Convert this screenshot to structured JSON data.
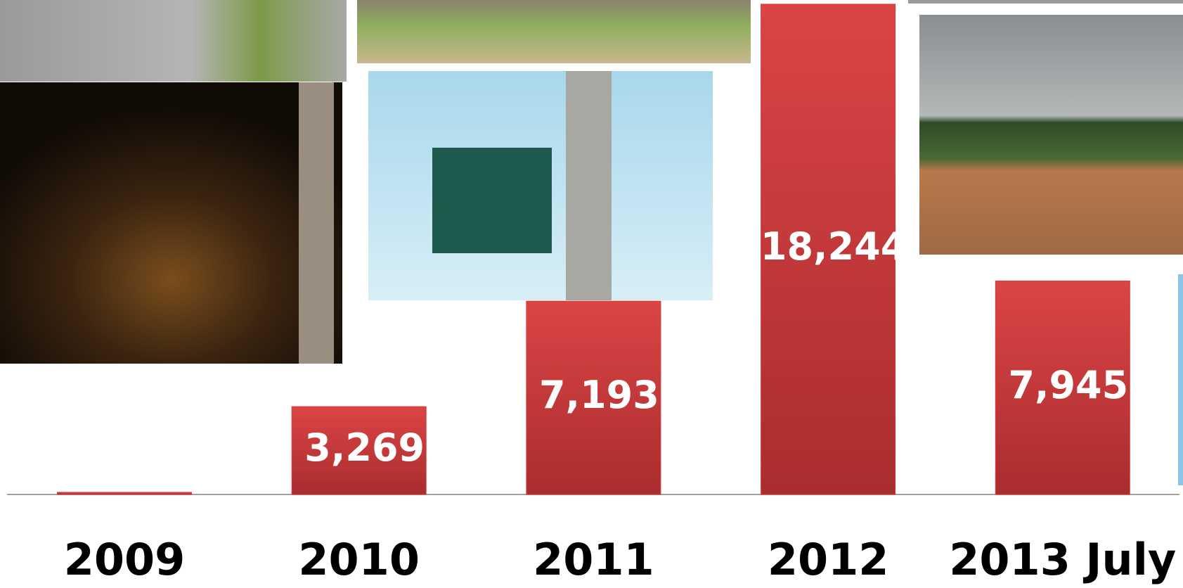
{
  "chart_data": {
    "type": "bar",
    "categories": [
      "2009",
      "2010",
      "2011",
      "2012",
      "2013 July"
    ],
    "values": [
      80,
      3269,
      7193,
      18244,
      7945
    ],
    "value_labels": [
      null,
      "3,269",
      "7,193",
      "18,244",
      "7,945"
    ],
    "color": "#d33b3b",
    "ylim": [
      0,
      18400
    ]
  }
}
